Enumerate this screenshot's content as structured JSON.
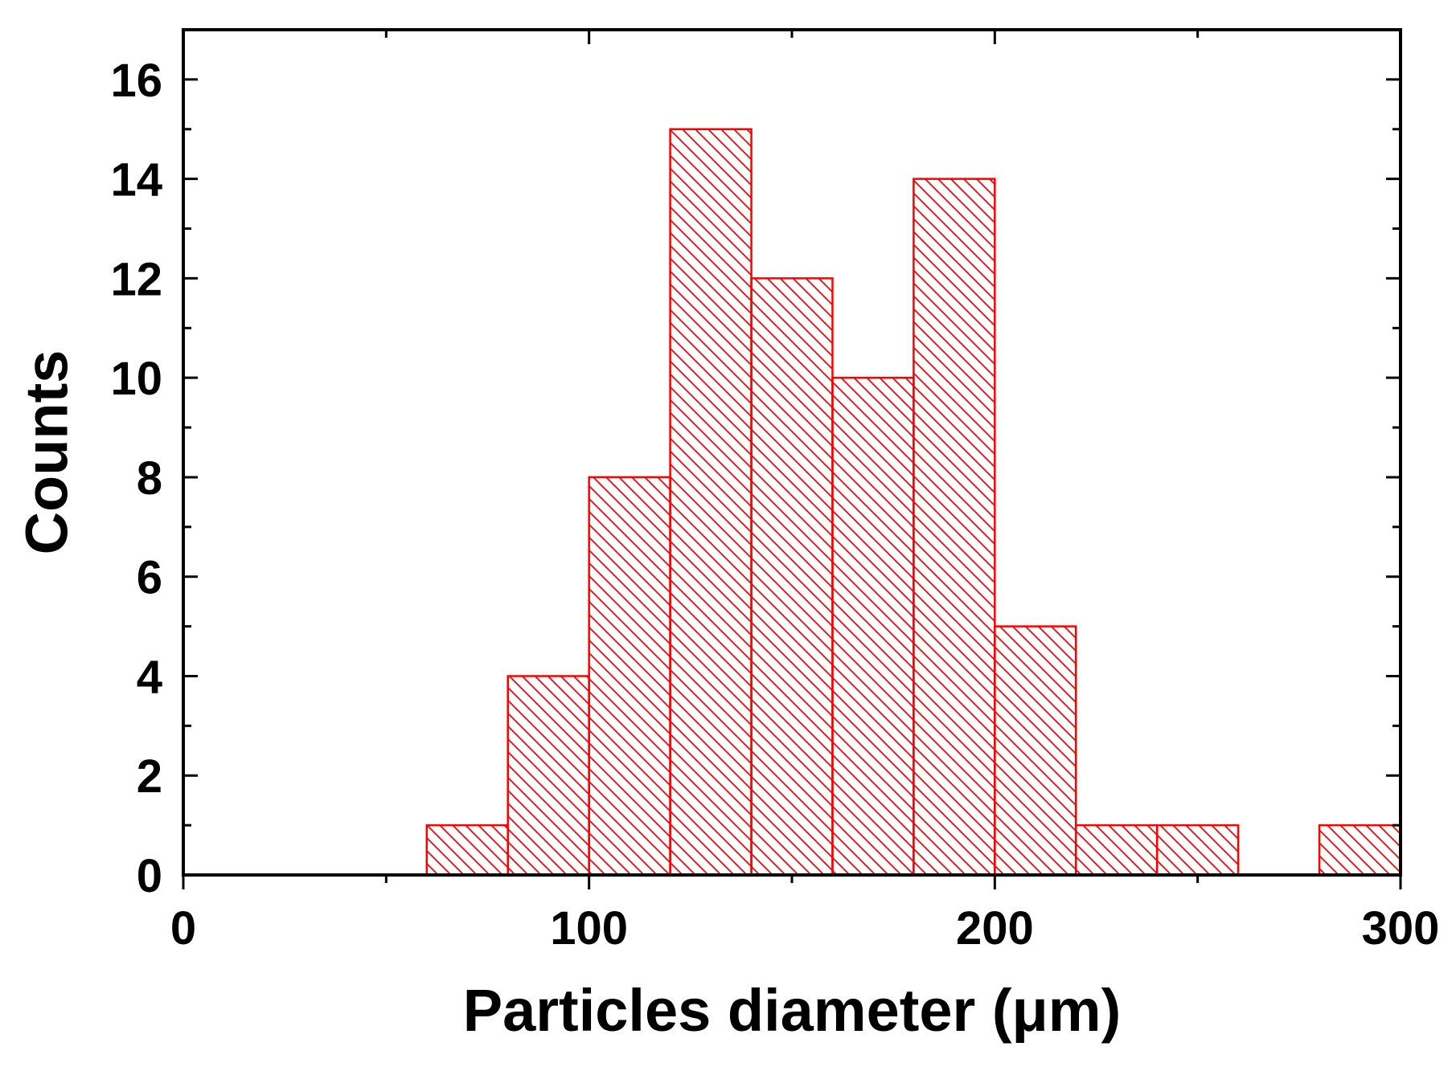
{
  "chart_data": {
    "type": "bar",
    "subtype": "histogram",
    "xlabel": "Particles diameter (μm)",
    "ylabel": "Counts",
    "xlim": [
      0,
      300
    ],
    "ylim": [
      0,
      17
    ],
    "x_ticks": [
      0,
      100,
      200,
      300
    ],
    "x_tick_labels": [
      "0",
      "100",
      "200",
      "300"
    ],
    "x_minor_tick_step": 50,
    "y_ticks": [
      0,
      2,
      4,
      6,
      8,
      10,
      12,
      14,
      16
    ],
    "y_tick_labels": [
      "0",
      "2",
      "4",
      "6",
      "8",
      "10",
      "12",
      "14",
      "16"
    ],
    "y_minor_tick_step": 1,
    "bin_width": 20,
    "bins": [
      {
        "start": 60,
        "end": 80,
        "count": 1
      },
      {
        "start": 80,
        "end": 100,
        "count": 4
      },
      {
        "start": 100,
        "end": 120,
        "count": 8
      },
      {
        "start": 120,
        "end": 140,
        "count": 15
      },
      {
        "start": 140,
        "end": 160,
        "count": 12
      },
      {
        "start": 160,
        "end": 180,
        "count": 10
      },
      {
        "start": 180,
        "end": 200,
        "count": 14
      },
      {
        "start": 200,
        "end": 220,
        "count": 5
      },
      {
        "start": 220,
        "end": 240,
        "count": 1
      },
      {
        "start": 240,
        "end": 260,
        "count": 1
      },
      {
        "start": 280,
        "end": 300,
        "count": 1
      }
    ],
    "bar_color": "#ff0000",
    "bar_fill_pattern": "diagonal-hatch",
    "frame_color": "#000000",
    "grid": false,
    "legend": "none"
  }
}
